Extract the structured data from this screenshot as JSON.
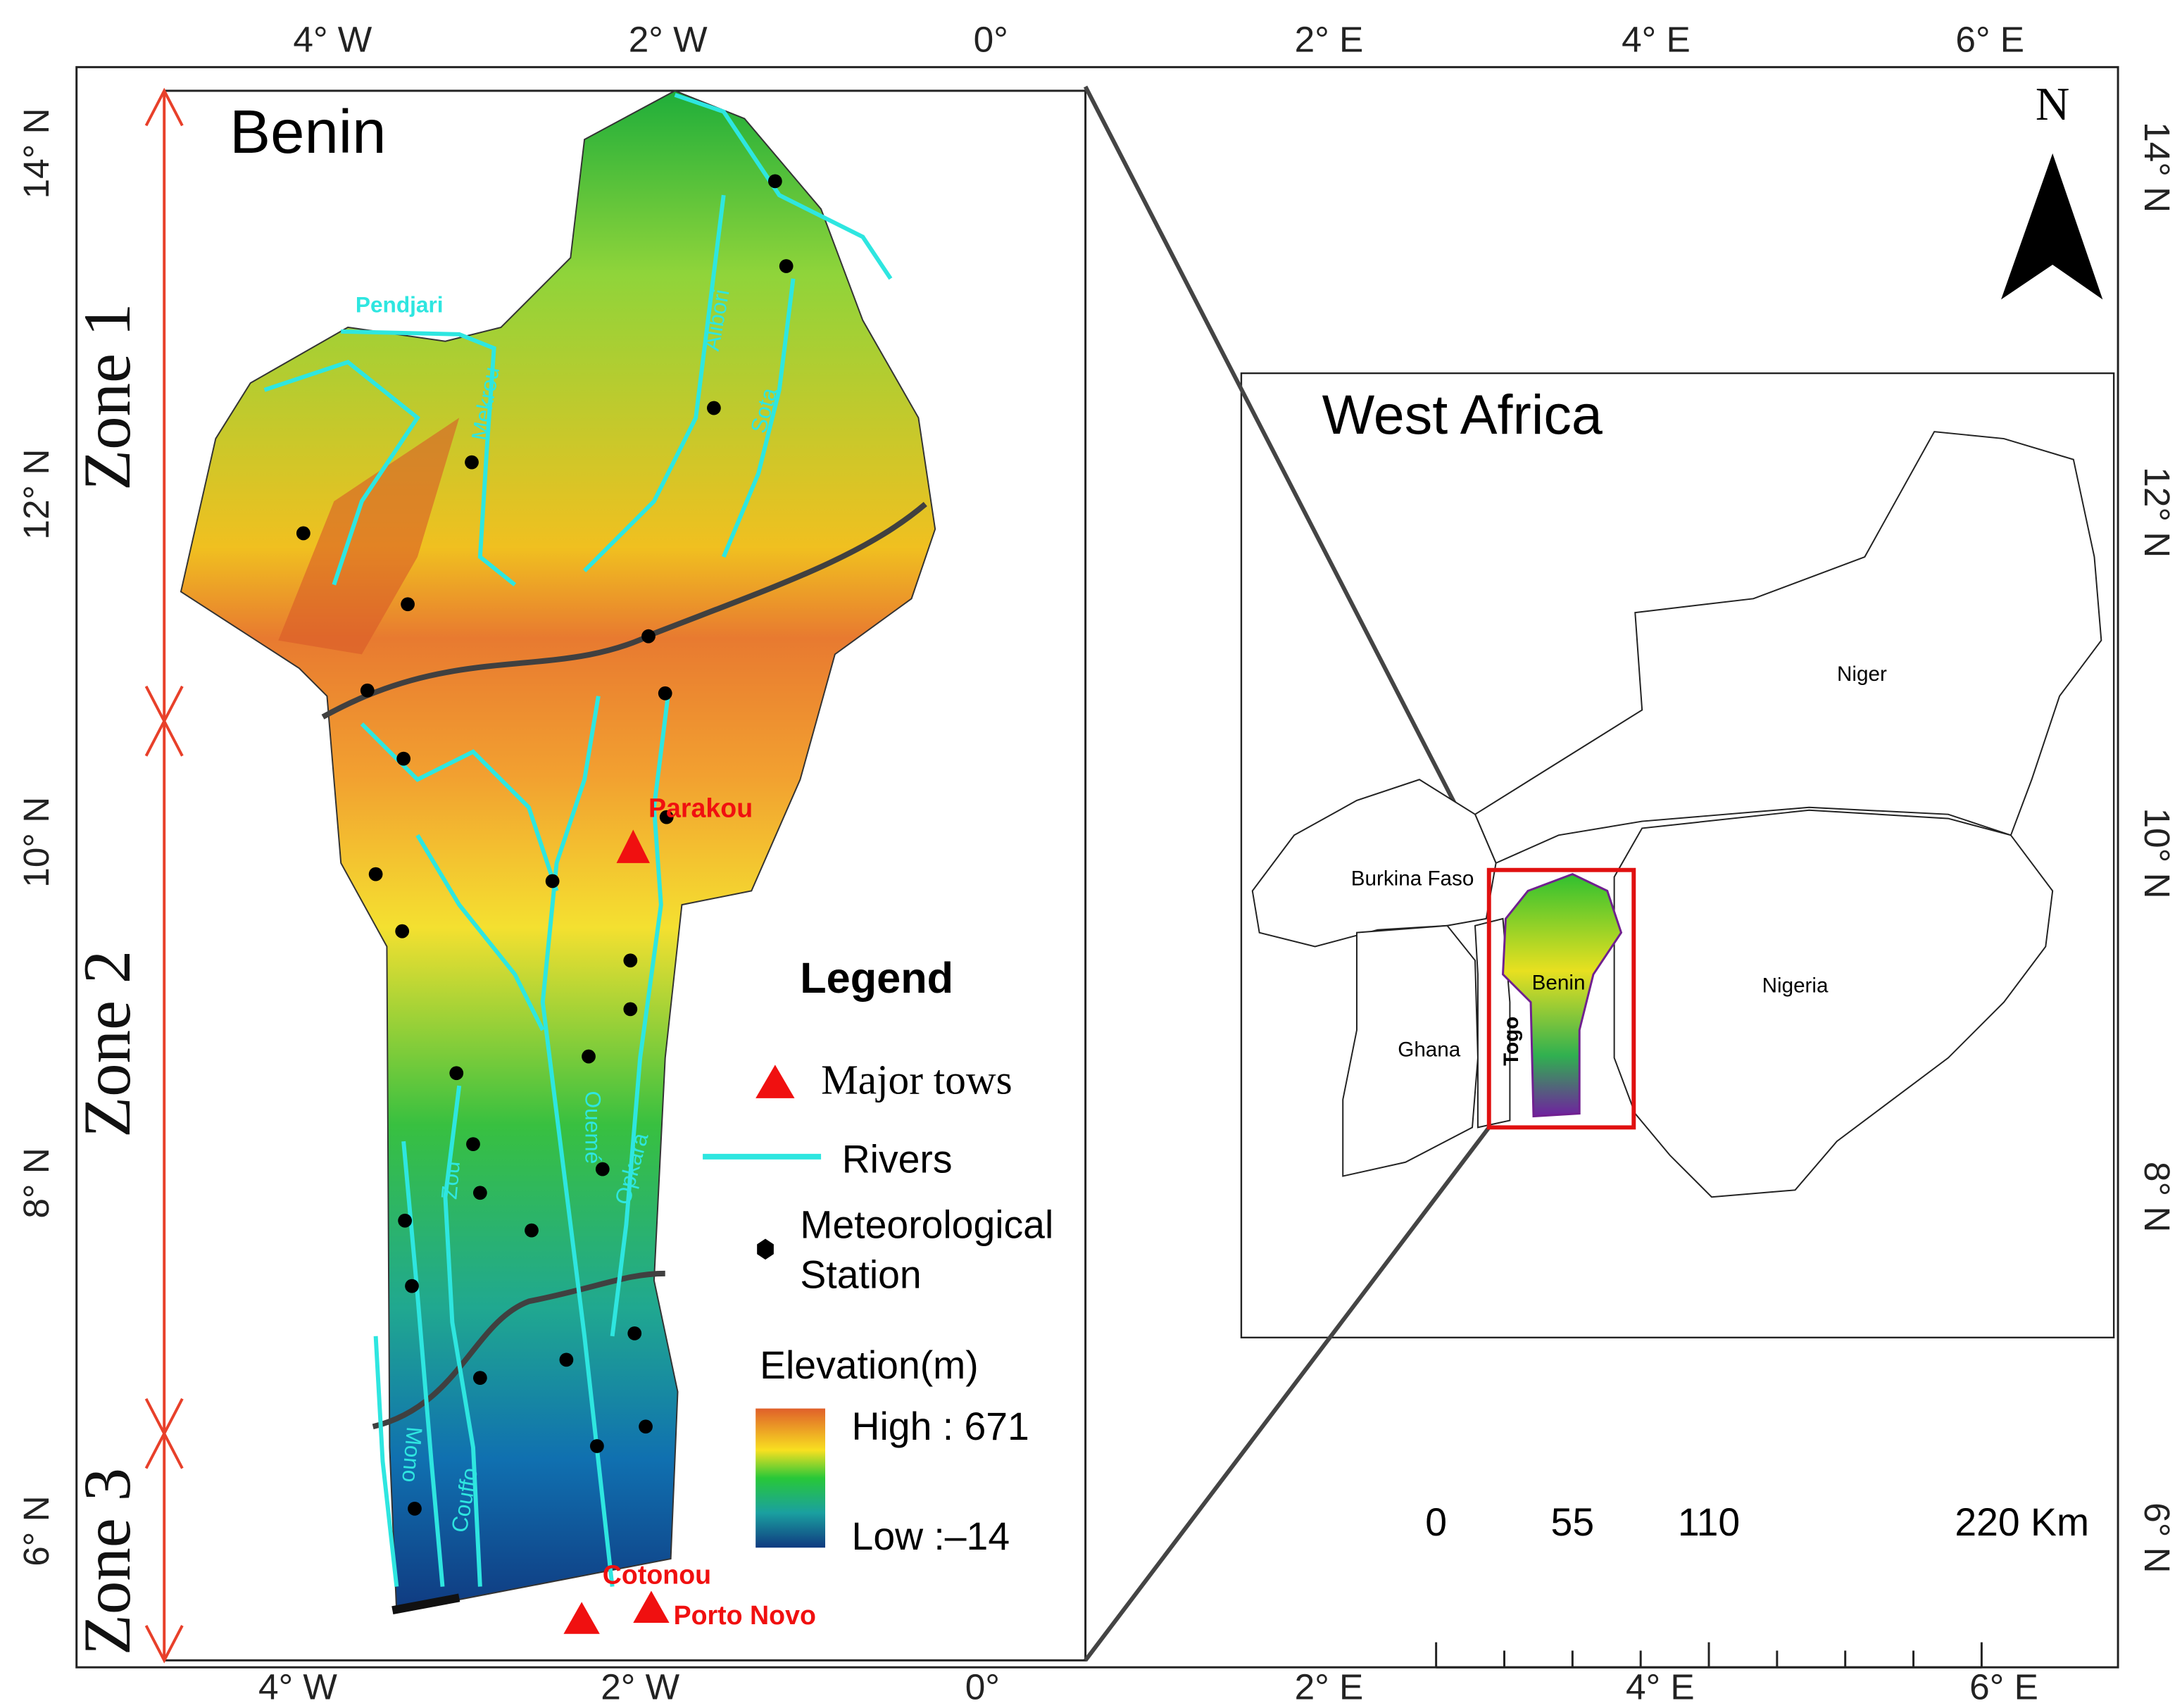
{
  "axes": {
    "top_labels": [
      "4° W",
      "2° W",
      "0°",
      "2° E",
      "4° E",
      "6° E"
    ],
    "bottom_labels": [
      "4° W",
      "2° W",
      "0°",
      "2° E",
      "4° E",
      "6° E"
    ],
    "left_labels": [
      "14° N",
      "12° N",
      "10° N",
      "8° N",
      "6° N"
    ],
    "right_labels": [
      "14° N",
      "12° N",
      "10° N",
      "8° N",
      "6° N"
    ]
  },
  "left_map": {
    "title": "Benin",
    "zones": [
      "Zone 1",
      "Zone 2",
      "Zone 3"
    ],
    "rivers": [
      "Pendjari",
      "Mekrou",
      "Alibori",
      "Sota",
      "Ouemé",
      "Opkara",
      "Zou",
      "Couffo",
      "Mono"
    ],
    "towns": [
      "Parakou",
      "Cotonou",
      "Porto Novo"
    ]
  },
  "legend": {
    "title": "Legend",
    "items": [
      "Major tows",
      "Rivers",
      "Meteorological",
      "Station"
    ],
    "elevation_title": "Elevation(m)",
    "high": "High : 671",
    "low": "Low :–14"
  },
  "inset": {
    "title": "West Africa",
    "countries": [
      "Niger",
      "Nigeria",
      "Burkina Faso",
      "Ghana",
      "Togo",
      "Benin"
    ],
    "north": "N",
    "scale_labels": [
      "0",
      "55",
      "110",
      "220 Km"
    ]
  }
}
